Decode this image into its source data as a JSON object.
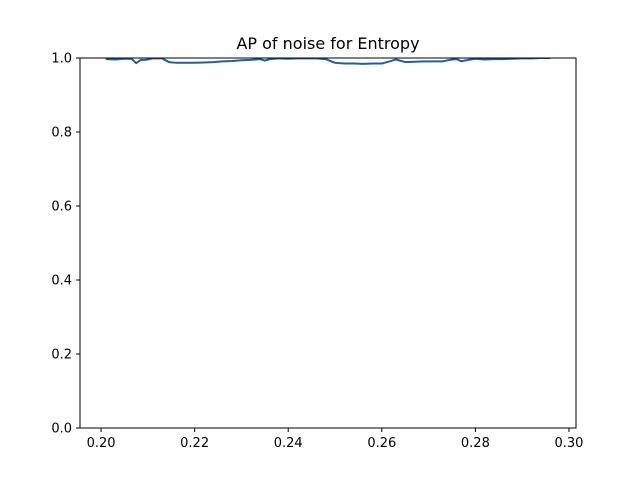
{
  "chart_data": {
    "type": "line",
    "title": "AP of noise for Entropy",
    "xlabel": "",
    "ylabel": "",
    "xlim": [
      0.1955,
      0.3015
    ],
    "ylim": [
      0.0,
      1.0
    ],
    "xticks": [
      "0.20",
      "0.22",
      "0.24",
      "0.26",
      "0.28",
      "0.30"
    ],
    "yticks": [
      "0.0",
      "0.2",
      "0.4",
      "0.6",
      "0.8",
      "1.0"
    ],
    "grid": false,
    "legend": "none",
    "series": [
      {
        "color": "#1f5f9a",
        "x": [
          0.201,
          0.203,
          0.205,
          0.2065,
          0.2075,
          0.2085,
          0.2095,
          0.211,
          0.213,
          0.2145,
          0.216,
          0.218,
          0.22,
          0.222,
          0.224,
          0.226,
          0.228,
          0.23,
          0.232,
          0.234,
          0.235,
          0.236,
          0.238,
          0.24,
          0.242,
          0.244,
          0.246,
          0.248,
          0.25,
          0.252,
          0.254,
          0.256,
          0.258,
          0.26,
          0.262,
          0.263,
          0.265,
          0.267,
          0.269,
          0.271,
          0.273,
          0.275,
          0.276,
          0.277,
          0.278,
          0.28,
          0.282,
          0.284,
          0.286,
          0.288,
          0.29,
          0.292,
          0.294,
          0.296
        ],
        "y": [
          0.997,
          0.996,
          0.998,
          0.998,
          0.986,
          0.995,
          0.995,
          0.999,
          0.999,
          0.989,
          0.987,
          0.987,
          0.987,
          0.988,
          0.989,
          0.991,
          0.992,
          0.994,
          0.995,
          0.997,
          0.993,
          0.997,
          0.999,
          0.998,
          0.999,
          0.999,
          0.999,
          0.997,
          0.987,
          0.985,
          0.985,
          0.984,
          0.985,
          0.985,
          0.992,
          0.996,
          0.989,
          0.99,
          0.991,
          0.991,
          0.991,
          0.996,
          0.997,
          0.991,
          0.994,
          0.998,
          0.996,
          0.997,
          0.997,
          0.998,
          0.999,
          0.999,
          1.0,
          1.0
        ]
      }
    ]
  }
}
